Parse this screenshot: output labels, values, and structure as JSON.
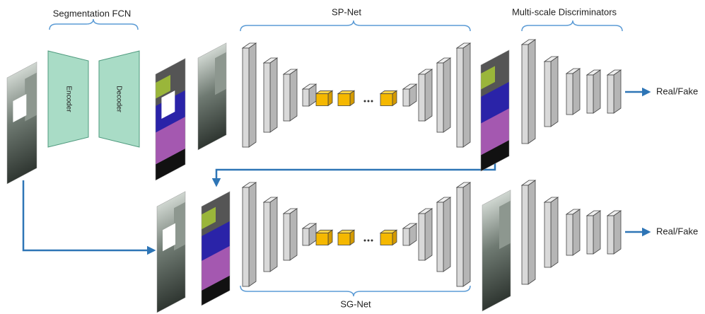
{
  "fcn": {
    "title": "Segmentation FCN",
    "encoder": "Encoder",
    "decoder": "Decoder"
  },
  "sp_net": {
    "title": "SP-Net"
  },
  "sg_net": {
    "title": "SG-Net"
  },
  "discriminators": {
    "title": "Multi-scale Discriminators",
    "outputs": [
      "Real/Fake",
      "Real/Fake"
    ]
  }
}
